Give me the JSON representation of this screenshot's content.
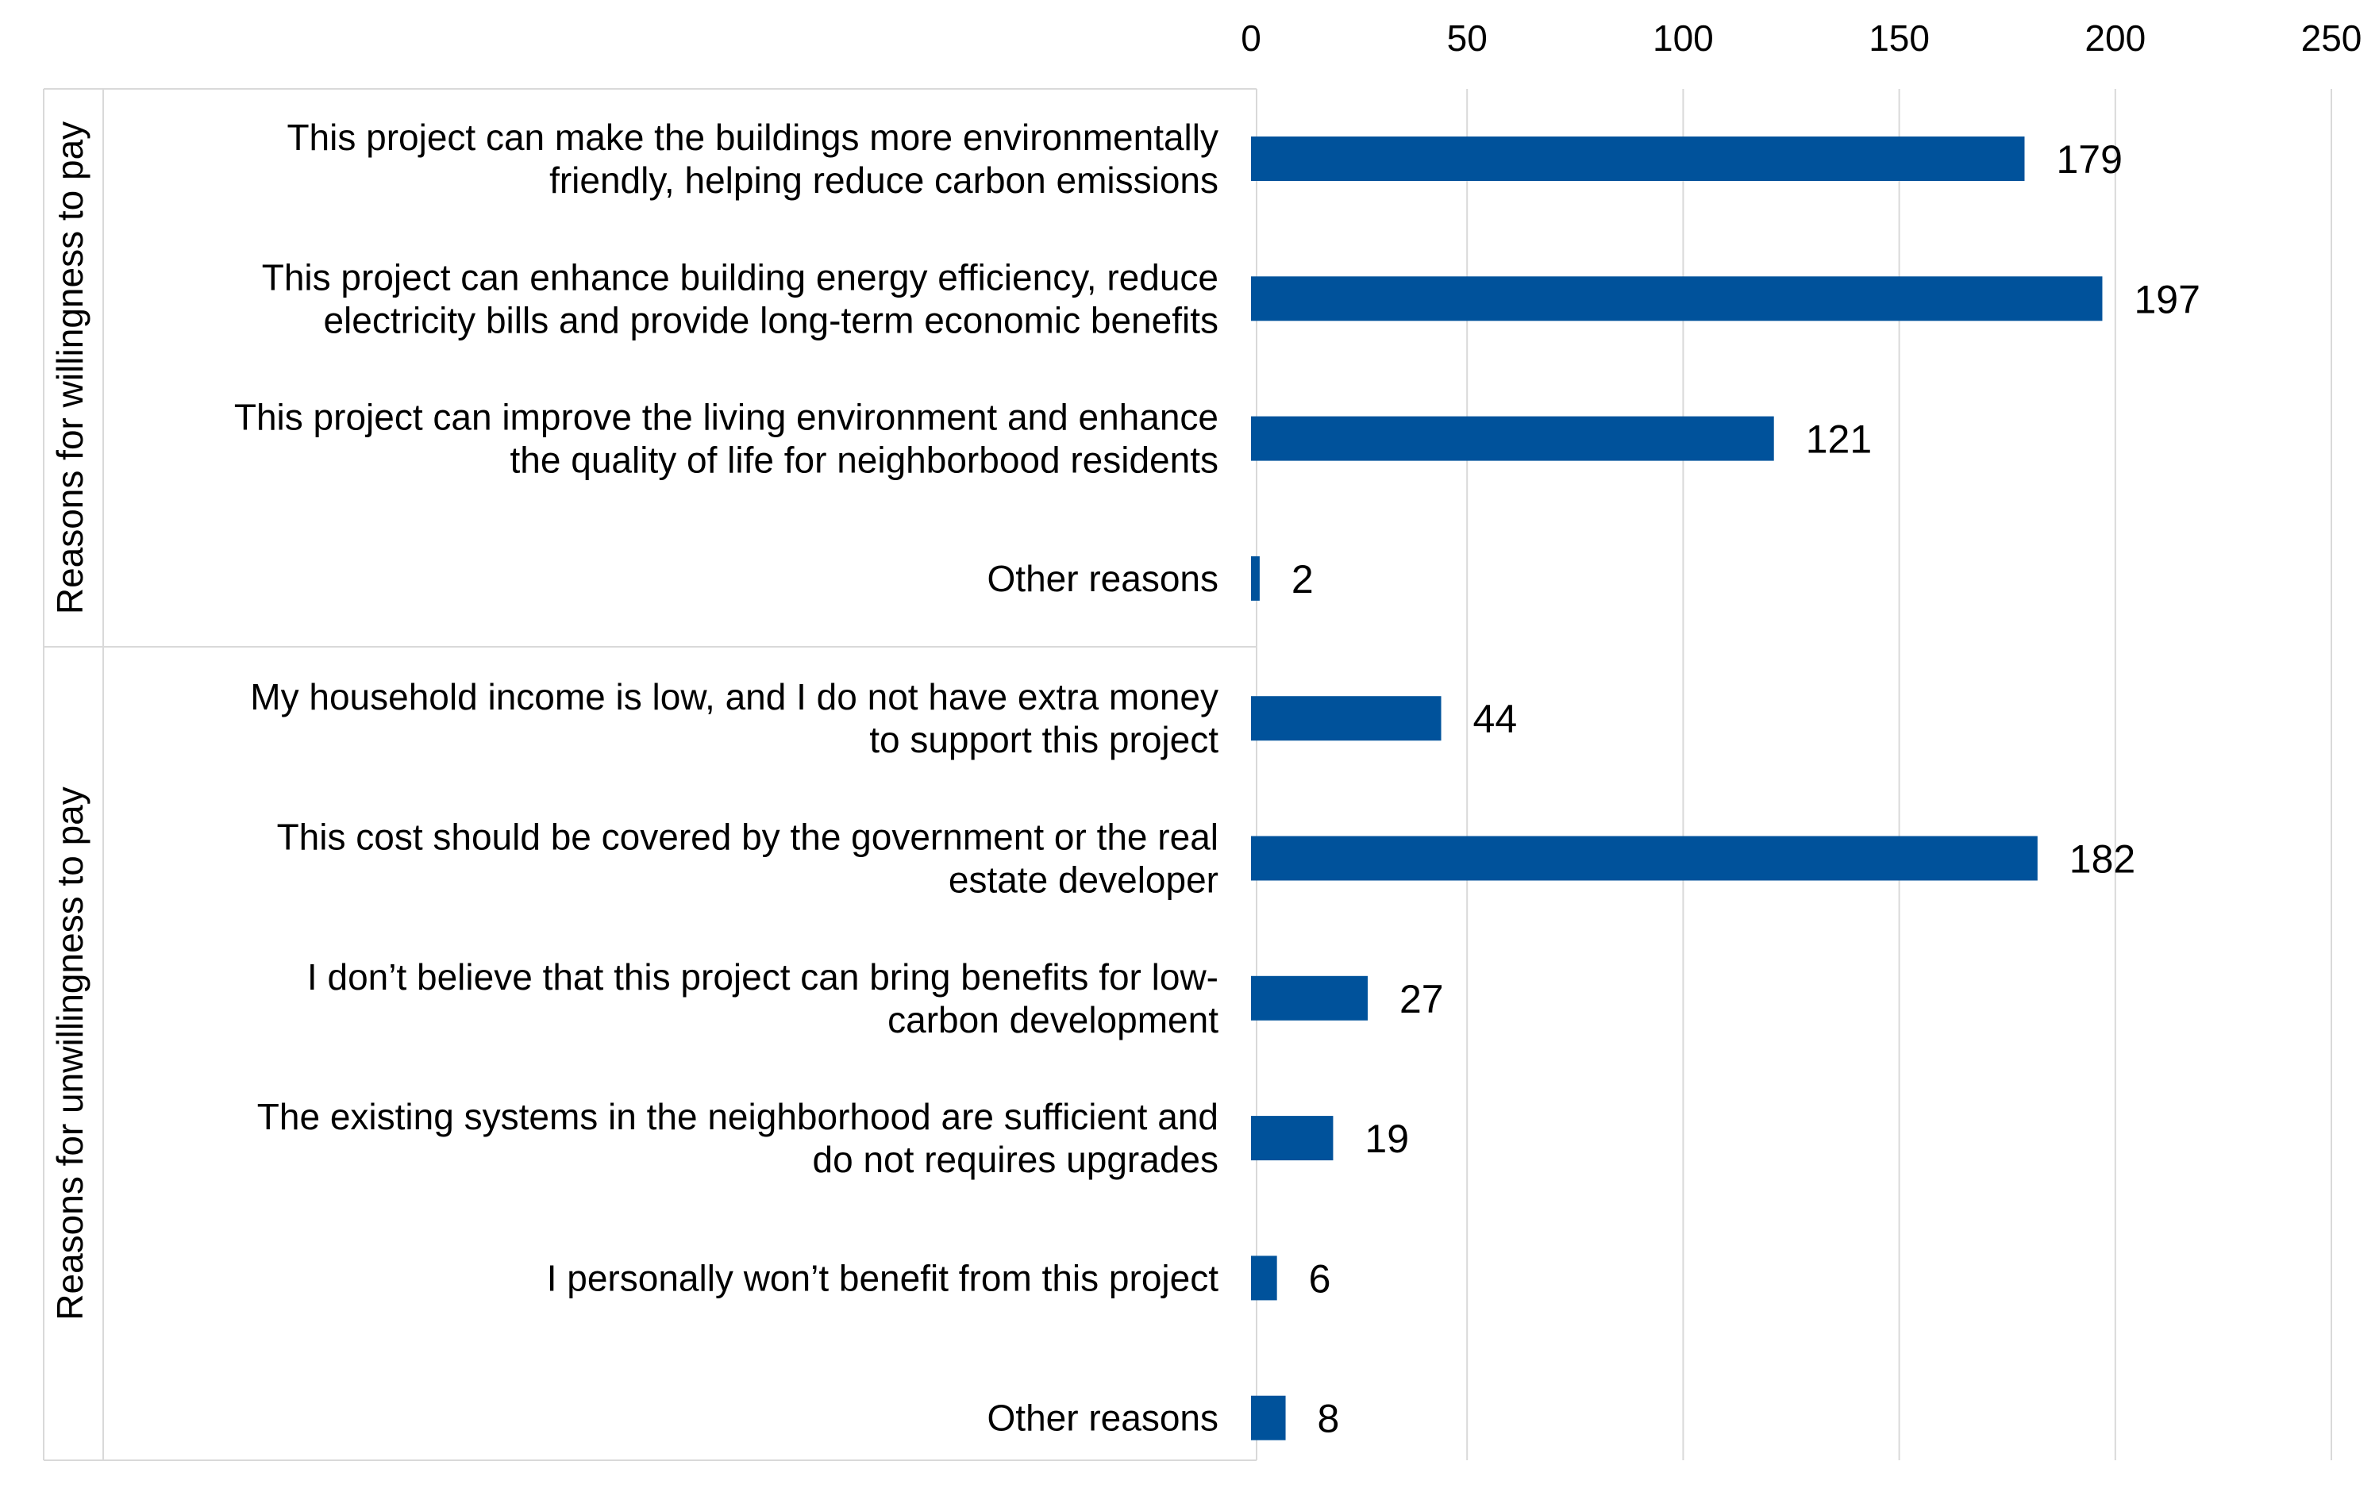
{
  "chart_data": {
    "type": "bar",
    "orientation": "horizontal",
    "xlim": [
      0,
      250
    ],
    "ticks": [
      0,
      50,
      100,
      150,
      200,
      250
    ],
    "grid": true,
    "axis_position": "top",
    "bar_color": "#00529B",
    "groups": [
      {
        "name": "Reasons for willingness to pay",
        "items": [
          {
            "lines": [
              "This project can make the buildings more environmentally",
              "friendly, helping reduce carbon emissions"
            ],
            "value": 179
          },
          {
            "lines": [
              "This project can enhance building energy efficiency, reduce",
              "electricity bills and provide long-term economic benefits"
            ],
            "value": 197
          },
          {
            "lines": [
              "This project can improve the living environment and enhance",
              "the quality of life for neighborbood residents"
            ],
            "value": 121
          },
          {
            "lines": [
              "Other reasons"
            ],
            "value": 2
          }
        ]
      },
      {
        "name": "Reasons for unwillingness to pay",
        "items": [
          {
            "lines": [
              "My household income is low, and I do not have extra money",
              "to support this project"
            ],
            "value": 44
          },
          {
            "lines": [
              "This cost should be covered by the government or the real",
              "estate developer"
            ],
            "value": 182
          },
          {
            "lines": [
              "I don’t believe that this project can bring benefits for low-",
              "carbon development"
            ],
            "value": 27
          },
          {
            "lines": [
              "The existing systems in the neighborhood are sufficient and",
              "do not requires upgrades"
            ],
            "value": 19
          },
          {
            "lines": [
              "I personally won’t benefit from this project"
            ],
            "value": 6
          },
          {
            "lines": [
              "Other reasons"
            ],
            "value": 8
          }
        ]
      }
    ]
  }
}
